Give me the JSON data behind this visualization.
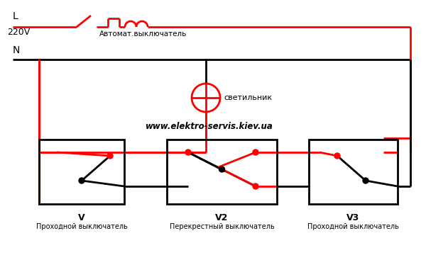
{
  "bg": "#FFFFFF",
  "red": "#FF0000",
  "black": "#000000",
  "label_L": "L",
  "label_220V": "220V",
  "label_N": "N",
  "label_breaker": "Автомат.выключатель",
  "label_lamp": "светильник",
  "website": "www.elektro-servis.kiev.ua",
  "label_V": "V",
  "label_V_sub": "Проходной выключатель",
  "label_V2": "V2",
  "label_V2_sub": "Перекрестный выключатель",
  "label_V3": "V3",
  "label_V3_sub": "Проходной выключатель",
  "lw": 2.0,
  "dot_r": 4.0,
  "figw": 6.0,
  "figh": 3.6,
  "dpi": 100
}
